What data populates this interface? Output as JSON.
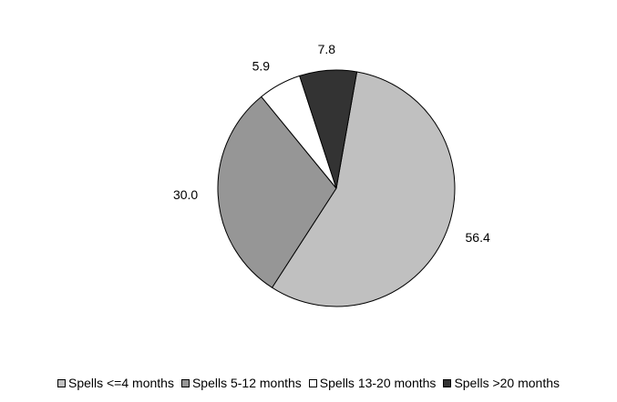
{
  "chart_data": {
    "type": "pie",
    "title": "",
    "slices": [
      {
        "label": "Spells <=4 months",
        "value": 56.4,
        "value_label": "56.4",
        "color": "#c0c0c0"
      },
      {
        "label": "Spells 5-12 months",
        "value": 30.0,
        "value_label": "30.0",
        "color": "#969696"
      },
      {
        "label": "Spells 13-20 months",
        "value": 5.9,
        "value_label": "5.9",
        "color": "#ffffff"
      },
      {
        "label": "Spells >20 months",
        "value": 7.8,
        "value_label": "7.8",
        "color": "#333333"
      }
    ],
    "start_angle_deg": 10,
    "direction": "clockwise",
    "legend_position": "bottom",
    "edge_color": "#000000"
  }
}
